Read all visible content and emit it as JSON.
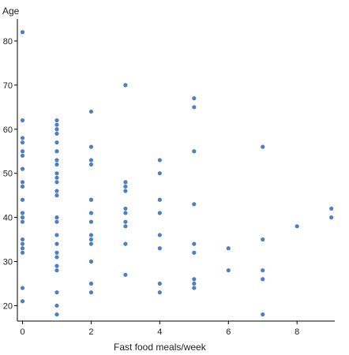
{
  "chart_data": {
    "type": "scatter",
    "title": "",
    "xlabel": "Fast food meals/week",
    "ylabel": "Age",
    "xlim": [
      -0.15,
      9.1
    ],
    "ylim": [
      16.5,
      85
    ],
    "x_ticks": [
      0,
      2,
      4,
      6,
      8
    ],
    "y_ticks": [
      20,
      30,
      40,
      50,
      60,
      70,
      80
    ],
    "grid": false,
    "legend": "none",
    "point_color": "#4f7fc0",
    "points": [
      [
        0,
        82
      ],
      [
        0,
        62
      ],
      [
        0,
        58
      ],
      [
        0,
        57
      ],
      [
        0,
        55
      ],
      [
        0,
        54
      ],
      [
        0,
        51
      ],
      [
        0,
        48
      ],
      [
        0,
        47
      ],
      [
        0,
        44
      ],
      [
        0,
        41
      ],
      [
        0,
        40
      ],
      [
        0,
        39
      ],
      [
        0,
        35
      ],
      [
        0,
        34
      ],
      [
        0,
        33
      ],
      [
        0,
        32
      ],
      [
        0,
        24
      ],
      [
        0,
        21
      ],
      [
        1,
        62
      ],
      [
        1,
        61
      ],
      [
        1,
        60
      ],
      [
        1,
        59
      ],
      [
        1,
        57
      ],
      [
        1,
        55
      ],
      [
        1,
        53
      ],
      [
        1,
        52
      ],
      [
        1,
        50
      ],
      [
        1,
        49
      ],
      [
        1,
        48
      ],
      [
        1,
        46
      ],
      [
        1,
        45
      ],
      [
        1,
        40
      ],
      [
        1,
        39
      ],
      [
        1,
        36
      ],
      [
        1,
        34
      ],
      [
        1,
        32
      ],
      [
        1,
        31
      ],
      [
        1,
        29
      ],
      [
        1,
        28
      ],
      [
        1,
        23
      ],
      [
        1,
        20
      ],
      [
        1,
        18
      ],
      [
        2,
        64
      ],
      [
        2,
        56
      ],
      [
        2,
        53
      ],
      [
        2,
        52
      ],
      [
        2,
        44
      ],
      [
        2,
        41
      ],
      [
        2,
        39
      ],
      [
        2,
        36
      ],
      [
        2,
        35
      ],
      [
        2,
        34
      ],
      [
        2,
        30
      ],
      [
        2,
        25
      ],
      [
        2,
        23
      ],
      [
        3,
        70
      ],
      [
        3,
        48
      ],
      [
        3,
        47
      ],
      [
        3,
        46
      ],
      [
        3,
        42
      ],
      [
        3,
        41
      ],
      [
        3,
        39
      ],
      [
        3,
        38
      ],
      [
        3,
        34
      ],
      [
        3,
        27
      ],
      [
        4,
        53
      ],
      [
        4,
        50
      ],
      [
        4,
        44
      ],
      [
        4,
        41
      ],
      [
        4,
        36
      ],
      [
        4,
        33
      ],
      [
        4,
        25
      ],
      [
        4,
        23
      ],
      [
        5,
        67
      ],
      [
        5,
        65
      ],
      [
        5,
        55
      ],
      [
        5,
        43
      ],
      [
        5,
        34
      ],
      [
        5,
        32
      ],
      [
        5,
        26
      ],
      [
        5,
        25
      ],
      [
        5,
        24
      ],
      [
        6,
        33
      ],
      [
        6,
        28
      ],
      [
        7,
        56
      ],
      [
        7,
        35
      ],
      [
        7,
        28
      ],
      [
        7,
        26
      ],
      [
        7,
        18
      ],
      [
        8,
        38
      ],
      [
        9,
        42
      ],
      [
        9,
        40
      ]
    ]
  }
}
